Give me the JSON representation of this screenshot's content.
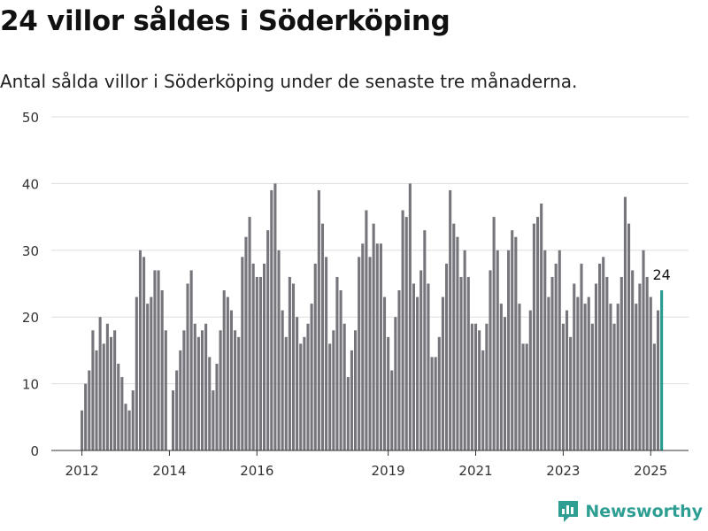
{
  "title": "24 villor såldes i Söderköping",
  "subtitle": "Antal sålda villor i Söderköping under de senaste tre månaderna.",
  "brand": {
    "name": "Newsworthy",
    "icon": "newsworthy-logo-icon"
  },
  "colors": {
    "bar": "#76757c",
    "highlight": "#279a8f",
    "grid": "#dddddd",
    "axis": "#333333",
    "brand": "#2e9e93"
  },
  "chart_data": {
    "type": "bar",
    "ylim": [
      0,
      50
    ],
    "yticks": [
      0,
      10,
      20,
      30,
      40,
      50
    ],
    "xtick_labels": [
      {
        "label": "2012",
        "index": 0
      },
      {
        "label": "2014",
        "index": 24
      },
      {
        "label": "2016",
        "index": 48
      },
      {
        "label": "2019",
        "index": 84
      },
      {
        "label": "2021",
        "index": 108
      },
      {
        "label": "2023",
        "index": 132
      },
      {
        "label": "2025",
        "index": 156
      }
    ],
    "highlight_label": "24",
    "values": [
      6,
      10,
      12,
      18,
      15,
      20,
      16,
      19,
      17,
      18,
      13,
      11,
      7,
      6,
      9,
      23,
      30,
      29,
      22,
      23,
      27,
      27,
      24,
      18,
      0,
      9,
      12,
      15,
      18,
      25,
      27,
      19,
      17,
      18,
      19,
      14,
      9,
      13,
      18,
      24,
      23,
      21,
      18,
      17,
      29,
      32,
      35,
      28,
      26,
      26,
      28,
      33,
      39,
      40,
      30,
      21,
      17,
      26,
      25,
      20,
      16,
      17,
      19,
      22,
      28,
      39,
      34,
      29,
      16,
      18,
      26,
      24,
      19,
      11,
      15,
      18,
      29,
      31,
      36,
      29,
      34,
      31,
      31,
      23,
      17,
      12,
      20,
      24,
      36,
      35,
      40,
      25,
      23,
      27,
      33,
      25,
      14,
      14,
      17,
      23,
      28,
      39,
      34,
      32,
      26,
      30,
      26,
      19,
      19,
      18,
      15,
      19,
      27,
      35,
      30,
      22,
      20,
      30,
      33,
      32,
      22,
      16,
      16,
      21,
      34,
      35,
      37,
      30,
      23,
      26,
      28,
      30,
      19,
      21,
      17,
      25,
      23,
      28,
      22,
      23,
      19,
      25,
      28,
      29,
      26,
      22,
      19,
      22,
      26,
      38,
      34,
      27,
      22,
      25,
      30,
      26,
      23,
      16,
      21,
      24
    ]
  }
}
